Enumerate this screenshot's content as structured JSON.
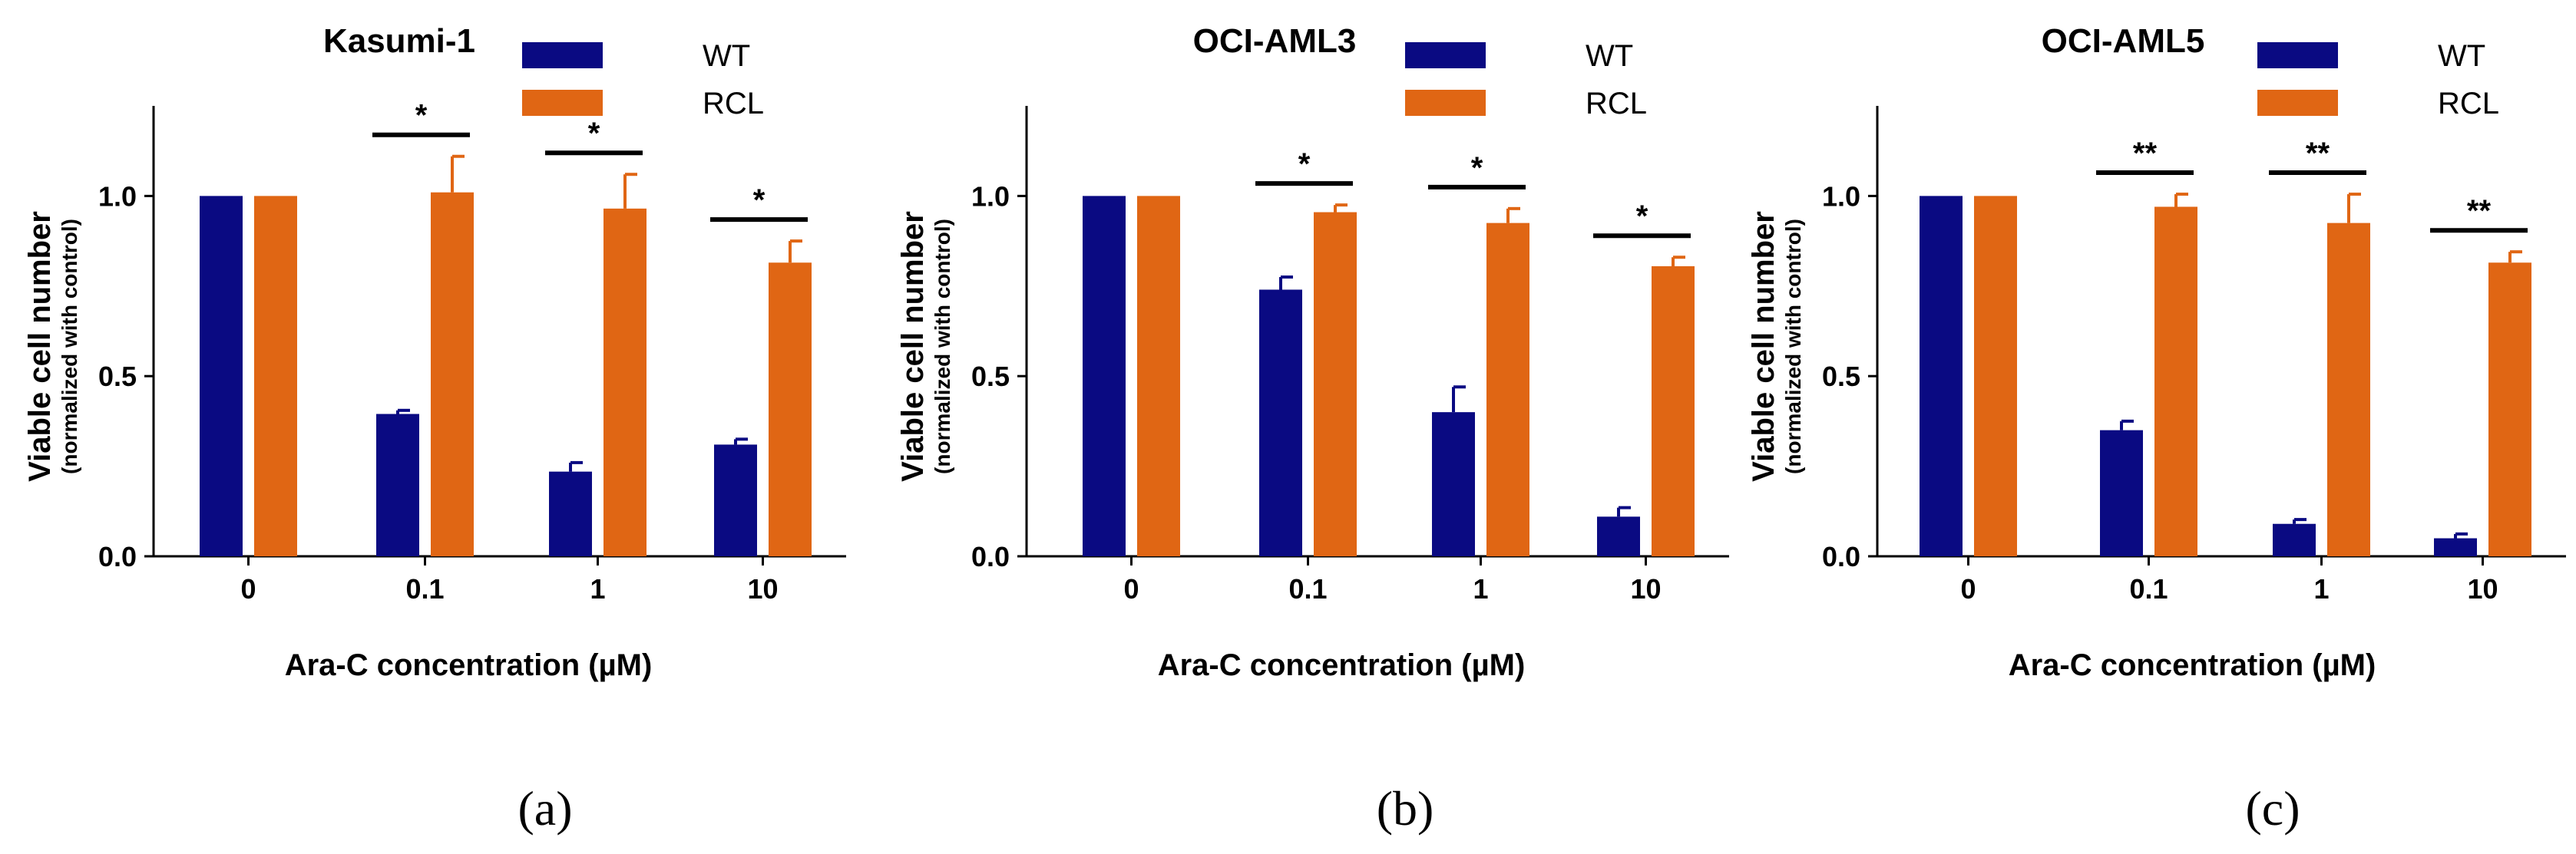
{
  "figure": {
    "ylabel_main": "Viable cell number",
    "ylabel_sub": "(normalized with control)",
    "xlabel": "Ara-C  concentration (µM)",
    "colors": {
      "wt": "#0a0a82",
      "rcl": "#e06614",
      "axis": "#000000"
    }
  },
  "chart_data": [
    {
      "type": "bar",
      "title": "Kasumi-1",
      "panel_label": "(a)",
      "categories": [
        "0",
        "0.1",
        "1",
        "10"
      ],
      "series": [
        {
          "name": "WT",
          "values": [
            1.0,
            0.395,
            0.235,
            0.31
          ],
          "errors": [
            0,
            0.01,
            0.025,
            0.015
          ]
        },
        {
          "name": "RCL",
          "values": [
            1.0,
            1.01,
            0.965,
            0.815
          ],
          "errors": [
            0,
            0.1,
            0.095,
            0.06
          ]
        }
      ],
      "significance": [
        "",
        "*",
        "*",
        "*"
      ],
      "ylim": [
        0,
        1.25
      ],
      "yticks": [
        "0.0",
        "0.5",
        "1.0"
      ],
      "legend": "top-right"
    },
    {
      "type": "bar",
      "title": "OCI-AML3",
      "panel_label": "(b)",
      "categories": [
        "0",
        "0.1",
        "1",
        "10"
      ],
      "series": [
        {
          "name": "WT",
          "values": [
            1.0,
            0.74,
            0.4,
            0.11
          ],
          "errors": [
            0,
            0.035,
            0.07,
            0.025
          ]
        },
        {
          "name": "RCL",
          "values": [
            1.0,
            0.955,
            0.925,
            0.805
          ],
          "errors": [
            0,
            0.02,
            0.04,
            0.025
          ]
        }
      ],
      "significance": [
        "",
        "*",
        "*",
        "*"
      ],
      "ylim": [
        0,
        1.25
      ],
      "yticks": [
        "0.0",
        "0.5",
        "1.0"
      ],
      "legend": "top-right"
    },
    {
      "type": "bar",
      "title": "OCI-AML5",
      "panel_label": "(c)",
      "categories": [
        "0",
        "0.1",
        "1",
        "10"
      ],
      "series": [
        {
          "name": "WT",
          "values": [
            1.0,
            0.35,
            0.09,
            0.05
          ],
          "errors": [
            0,
            0.025,
            0.012,
            0.012
          ]
        },
        {
          "name": "RCL",
          "values": [
            1.0,
            0.97,
            0.925,
            0.815
          ],
          "errors": [
            0,
            0.035,
            0.08,
            0.03
          ]
        }
      ],
      "significance": [
        "",
        "**",
        "**",
        "**"
      ],
      "ylim": [
        0,
        1.25
      ],
      "yticks": [
        "0.0",
        "0.5",
        "1.0"
      ],
      "legend": "top-right"
    }
  ]
}
